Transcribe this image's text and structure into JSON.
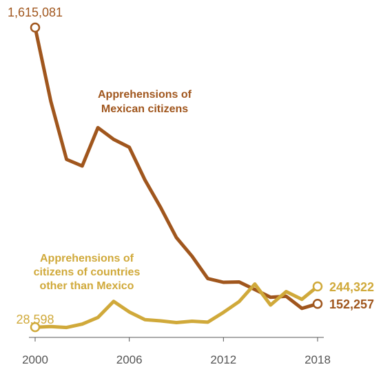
{
  "chart_data": {
    "type": "line",
    "x": [
      2000,
      2001,
      2002,
      2003,
      2004,
      2005,
      2006,
      2007,
      2008,
      2009,
      2010,
      2011,
      2012,
      2013,
      2014,
      2015,
      2016,
      2017,
      2018
    ],
    "series": [
      {
        "name": "Apprehensions of Mexican citizens",
        "values": [
          1615081,
          1224000,
          917000,
          882000,
          1085000,
          1023000,
          981000,
          808000,
          662000,
          503000,
          404000,
          286000,
          266000,
          268000,
          228000,
          187000,
          192000,
          128000,
          152257
        ],
        "color": "#a0561d",
        "label_lines": [
          "Apprehensions of",
          "Mexican citizens"
        ],
        "start_label": "1,615,081",
        "end_label": "152,257"
      },
      {
        "name": "Apprehensions of citizens of countries other than Mexico",
        "values": [
          28598,
          32000,
          27000,
          45000,
          80000,
          165000,
          109000,
          68000,
          62000,
          53000,
          60000,
          55000,
          107000,
          164000,
          257000,
          146000,
          217000,
          176000,
          244322
        ],
        "color": "#d0a93a",
        "label_lines": [
          "Apprehensions of",
          "citizens of countries",
          "other than Mexico"
        ],
        "start_label": "28,598",
        "end_label": "244,322"
      }
    ],
    "xticks": [
      "2000",
      "2006",
      "2012",
      "2018"
    ],
    "xlim": [
      2000,
      2018
    ],
    "ylim": [
      0,
      1615081
    ],
    "title": "",
    "xlabel": "",
    "ylabel": "",
    "grid": false,
    "legend": "direct labels"
  }
}
